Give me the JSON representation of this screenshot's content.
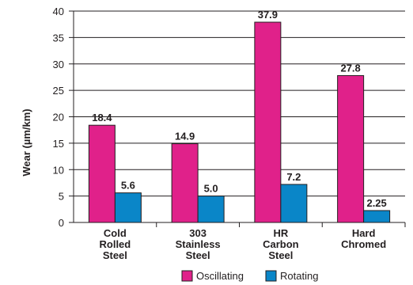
{
  "chart_data": {
    "type": "bar",
    "categories": [
      [
        "Cold",
        "Rolled",
        "Steel"
      ],
      [
        "303",
        "Stainless",
        "Steel"
      ],
      [
        "HR",
        "Carbon",
        "Steel"
      ],
      [
        "Hard",
        "Chromed"
      ]
    ],
    "series": [
      {
        "name": "Oscillating",
        "color": "#e0218a",
        "values": [
          18.4,
          14.9,
          37.9,
          27.8
        ],
        "labels": [
          "18.4",
          "14.9",
          "37.9",
          "27.8"
        ]
      },
      {
        "name": "Rotating",
        "color": "#0a86c8",
        "values": [
          5.6,
          5.0,
          7.2,
          2.25
        ],
        "labels": [
          "5.6",
          "5.0",
          "7.2",
          "2.25"
        ]
      }
    ],
    "ylabel": "Wear (µm/km)",
    "ylim": [
      0,
      40
    ],
    "yticks": [
      "0",
      "5",
      "10",
      "15",
      "20",
      "25",
      "30",
      "35",
      "40"
    ],
    "grid": true,
    "legend": "bottom"
  }
}
